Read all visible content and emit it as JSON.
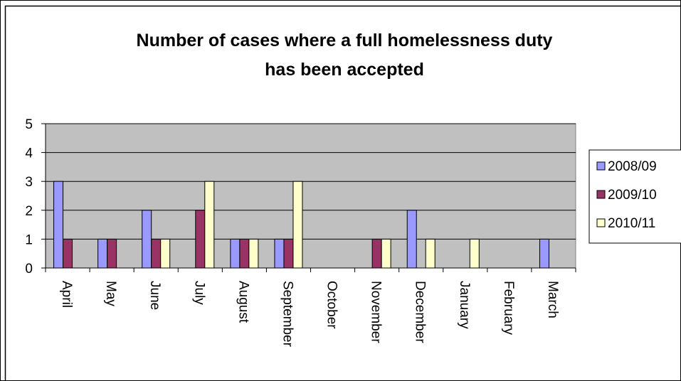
{
  "chart_data": {
    "type": "bar",
    "title_line1": "Number of cases where a full homelessness duty",
    "title_line2": "has been accepted",
    "categories": [
      "April",
      "May",
      "June",
      "July",
      "August",
      "September",
      "October",
      "November",
      "December",
      "January",
      "February",
      "March"
    ],
    "series": [
      {
        "name": "2008/09",
        "color": "#9999ff",
        "values": [
          3,
          1,
          2,
          0,
          1,
          1,
          0,
          0,
          2,
          0,
          0,
          1
        ]
      },
      {
        "name": "2009/10",
        "color": "#993366",
        "values": [
          1,
          1,
          1,
          2,
          1,
          1,
          0,
          1,
          0,
          0,
          0,
          0
        ]
      },
      {
        "name": "2010/11",
        "color": "#ffffcc",
        "values": [
          0,
          0,
          1,
          3,
          1,
          3,
          0,
          1,
          1,
          1,
          0,
          0
        ]
      }
    ],
    "ylim": [
      0,
      5
    ],
    "yticks": [
      0,
      1,
      2,
      3,
      4,
      5
    ],
    "grid": true,
    "legend_position": "right",
    "plot_background": "#c0c0c0"
  }
}
